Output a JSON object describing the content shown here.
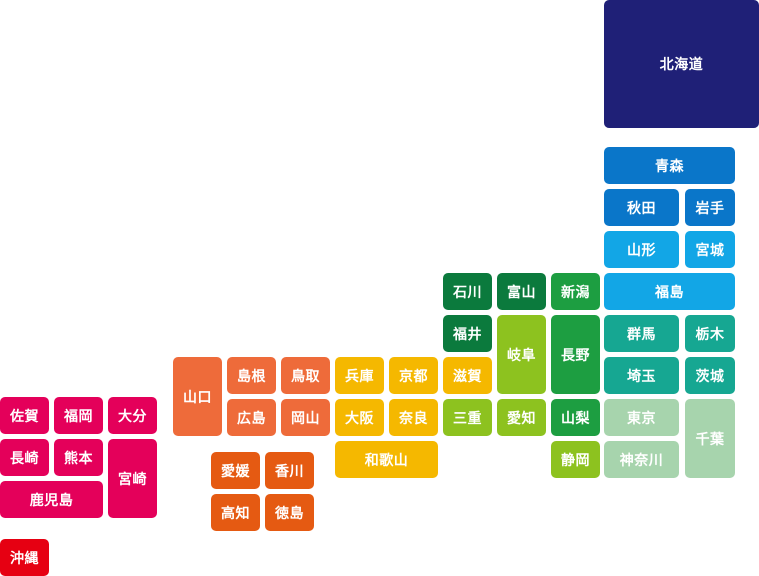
{
  "prefectures": [
    {
      "id": "hokkaido",
      "label": "北海道",
      "color": "#1f2077"
    },
    {
      "id": "aomori",
      "label": "青森",
      "color": "#0a76c9"
    },
    {
      "id": "akita",
      "label": "秋田",
      "color": "#0a76c9"
    },
    {
      "id": "iwate",
      "label": "岩手",
      "color": "#0a76c9"
    },
    {
      "id": "yamagata",
      "label": "山形",
      "color": "#12a6e6"
    },
    {
      "id": "miyagi",
      "label": "宮城",
      "color": "#12a6e6"
    },
    {
      "id": "fukushima",
      "label": "福島",
      "color": "#12a6e6"
    },
    {
      "id": "gunma",
      "label": "群馬",
      "color": "#16a792"
    },
    {
      "id": "tochigi",
      "label": "栃木",
      "color": "#16a792"
    },
    {
      "id": "saitama",
      "label": "埼玉",
      "color": "#16a792"
    },
    {
      "id": "ibaraki",
      "label": "茨城",
      "color": "#16a792"
    },
    {
      "id": "tokyo",
      "label": "東京",
      "color": "#a7d4ad"
    },
    {
      "id": "kanagawa",
      "label": "神奈川",
      "color": "#a7d4ad"
    },
    {
      "id": "chiba",
      "label": "千葉",
      "color": "#a7d4ad"
    },
    {
      "id": "niigata",
      "label": "新潟",
      "color": "#1d9e41"
    },
    {
      "id": "nagano",
      "label": "長野",
      "color": "#1d9e41"
    },
    {
      "id": "yamanashi",
      "label": "山梨",
      "color": "#1d9e41"
    },
    {
      "id": "shizuoka",
      "label": "静岡",
      "color": "#8dc21f"
    },
    {
      "id": "toyama",
      "label": "富山",
      "color": "#0b7a3d"
    },
    {
      "id": "gifu",
      "label": "岐阜",
      "color": "#8dc21f"
    },
    {
      "id": "aichi",
      "label": "愛知",
      "color": "#8dc21f"
    },
    {
      "id": "ishikawa",
      "label": "石川",
      "color": "#0b7a3d"
    },
    {
      "id": "fukui",
      "label": "福井",
      "color": "#0b7a3d"
    },
    {
      "id": "shiga",
      "label": "滋賀",
      "color": "#f5b800"
    },
    {
      "id": "mie",
      "label": "三重",
      "color": "#8dc21f"
    },
    {
      "id": "hyogo",
      "label": "兵庫",
      "color": "#f5b800"
    },
    {
      "id": "kyoto",
      "label": "京都",
      "color": "#f5b800"
    },
    {
      "id": "osaka",
      "label": "大阪",
      "color": "#f5b800"
    },
    {
      "id": "nara",
      "label": "奈良",
      "color": "#f5b800"
    },
    {
      "id": "wakayama",
      "label": "和歌山",
      "color": "#f5b800"
    },
    {
      "id": "shimane",
      "label": "島根",
      "color": "#ee6b3a"
    },
    {
      "id": "tottori",
      "label": "鳥取",
      "color": "#ee6b3a"
    },
    {
      "id": "hiroshima",
      "label": "広島",
      "color": "#ee6b3a"
    },
    {
      "id": "okayama",
      "label": "岡山",
      "color": "#ee6b3a"
    },
    {
      "id": "yamaguchi",
      "label": "山口",
      "color": "#ee6b3a"
    },
    {
      "id": "ehime",
      "label": "愛媛",
      "color": "#e55a12"
    },
    {
      "id": "kagawa",
      "label": "香川",
      "color": "#e55a12"
    },
    {
      "id": "kochi",
      "label": "高知",
      "color": "#e55a12"
    },
    {
      "id": "tokushima",
      "label": "徳島",
      "color": "#e55a12"
    },
    {
      "id": "saga",
      "label": "佐賀",
      "color": "#e4005a"
    },
    {
      "id": "fukuoka",
      "label": "福岡",
      "color": "#e4005a"
    },
    {
      "id": "oita",
      "label": "大分",
      "color": "#e4005a"
    },
    {
      "id": "nagasaki",
      "label": "長崎",
      "color": "#e4005a"
    },
    {
      "id": "kumamoto",
      "label": "熊本",
      "color": "#e4005a"
    },
    {
      "id": "miyazaki",
      "label": "宮崎",
      "color": "#e4005a"
    },
    {
      "id": "kagoshima",
      "label": "鹿児島",
      "color": "#e4005a"
    },
    {
      "id": "okinawa",
      "label": "沖縄",
      "color": "#e60012"
    }
  ]
}
